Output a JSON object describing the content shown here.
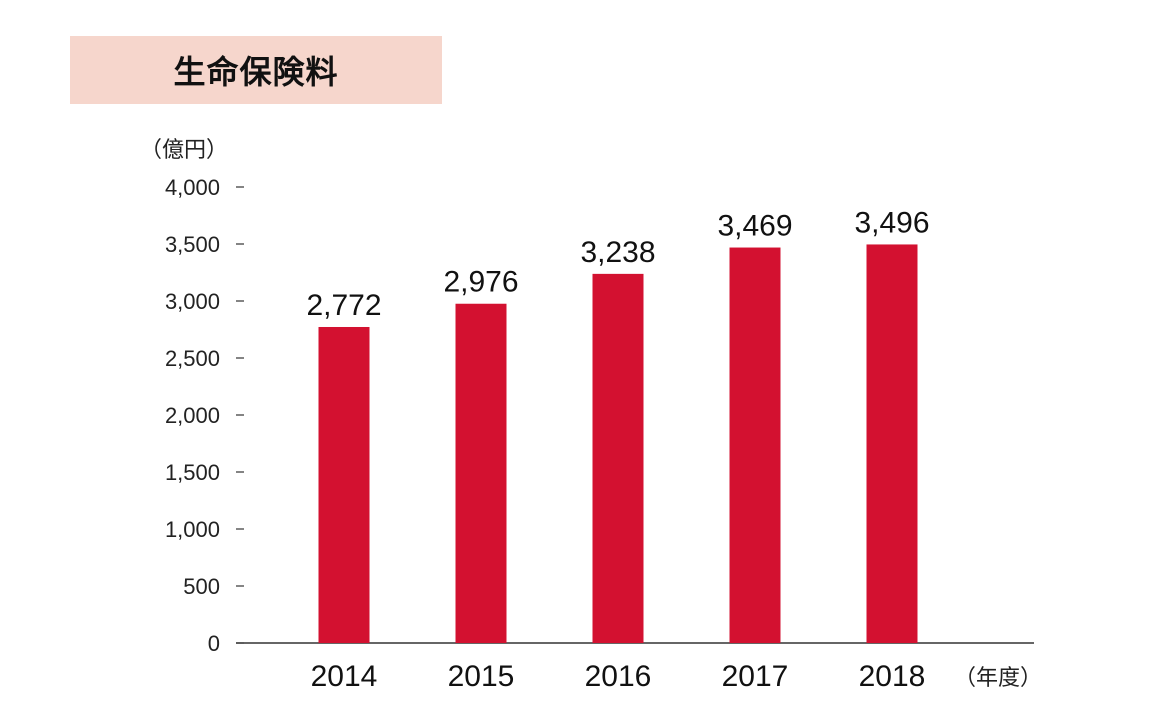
{
  "title": "生命保険料",
  "y_unit_label": "（億円）",
  "x_unit_label": "（年度）",
  "colors": {
    "bar": "#d31130",
    "title_bg": "#f6d6cc",
    "axis": "#333333"
  },
  "chart_data": {
    "type": "bar",
    "title": "生命保険料",
    "xlabel": "（年度）",
    "ylabel": "（億円）",
    "categories": [
      "2014",
      "2015",
      "2016",
      "2017",
      "2018"
    ],
    "values": [
      2772,
      2976,
      3238,
      3469,
      3496
    ],
    "value_labels": [
      "2,772",
      "2,976",
      "3,238",
      "3,469",
      "3,496"
    ],
    "y_ticks": [
      0,
      500,
      1000,
      1500,
      2000,
      2500,
      3000,
      3500,
      4000
    ],
    "y_tick_labels": [
      "0",
      "500",
      "1,000",
      "1,500",
      "2,000",
      "2,500",
      "3,000",
      "3,500",
      "4,000"
    ],
    "ylim": [
      0,
      4000
    ],
    "grid": false,
    "legend": "none"
  }
}
